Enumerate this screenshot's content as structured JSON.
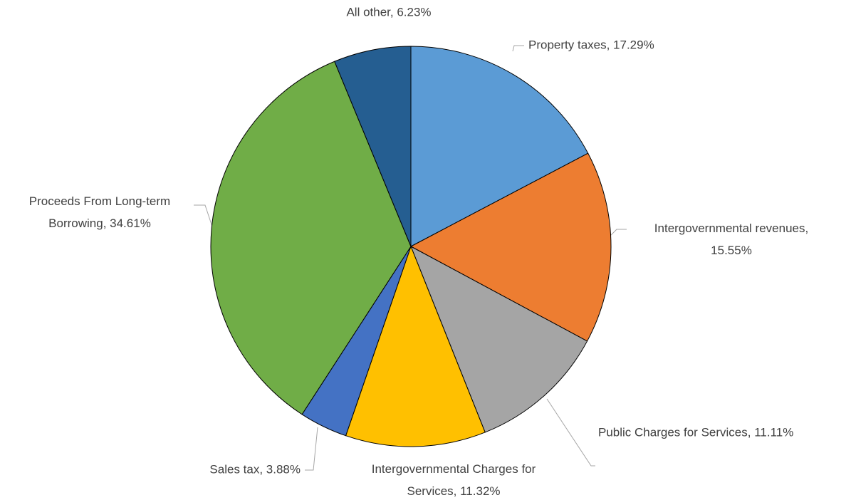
{
  "chart_data": {
    "type": "pie",
    "values": [
      17.29,
      15.55,
      11.11,
      11.32,
      3.88,
      34.61,
      6.23
    ],
    "value_labels": [
      "Property taxes, 17.29%",
      "Intergovernmental revenues, 15.55%",
      "Public Charges for Services, 11.11%",
      "Intergovernmental Charges for Services, 11.32%",
      "Sales tax, 3.88%",
      "Proceeds From Long-term Borrowing, 34.61%",
      "All other, 6.23%"
    ],
    "colors": [
      "#5B9BD5",
      "#ED7D31",
      "#A5A5A5",
      "#FFC000",
      "#4472C4",
      "#70AD47",
      "#255E91"
    ]
  }
}
